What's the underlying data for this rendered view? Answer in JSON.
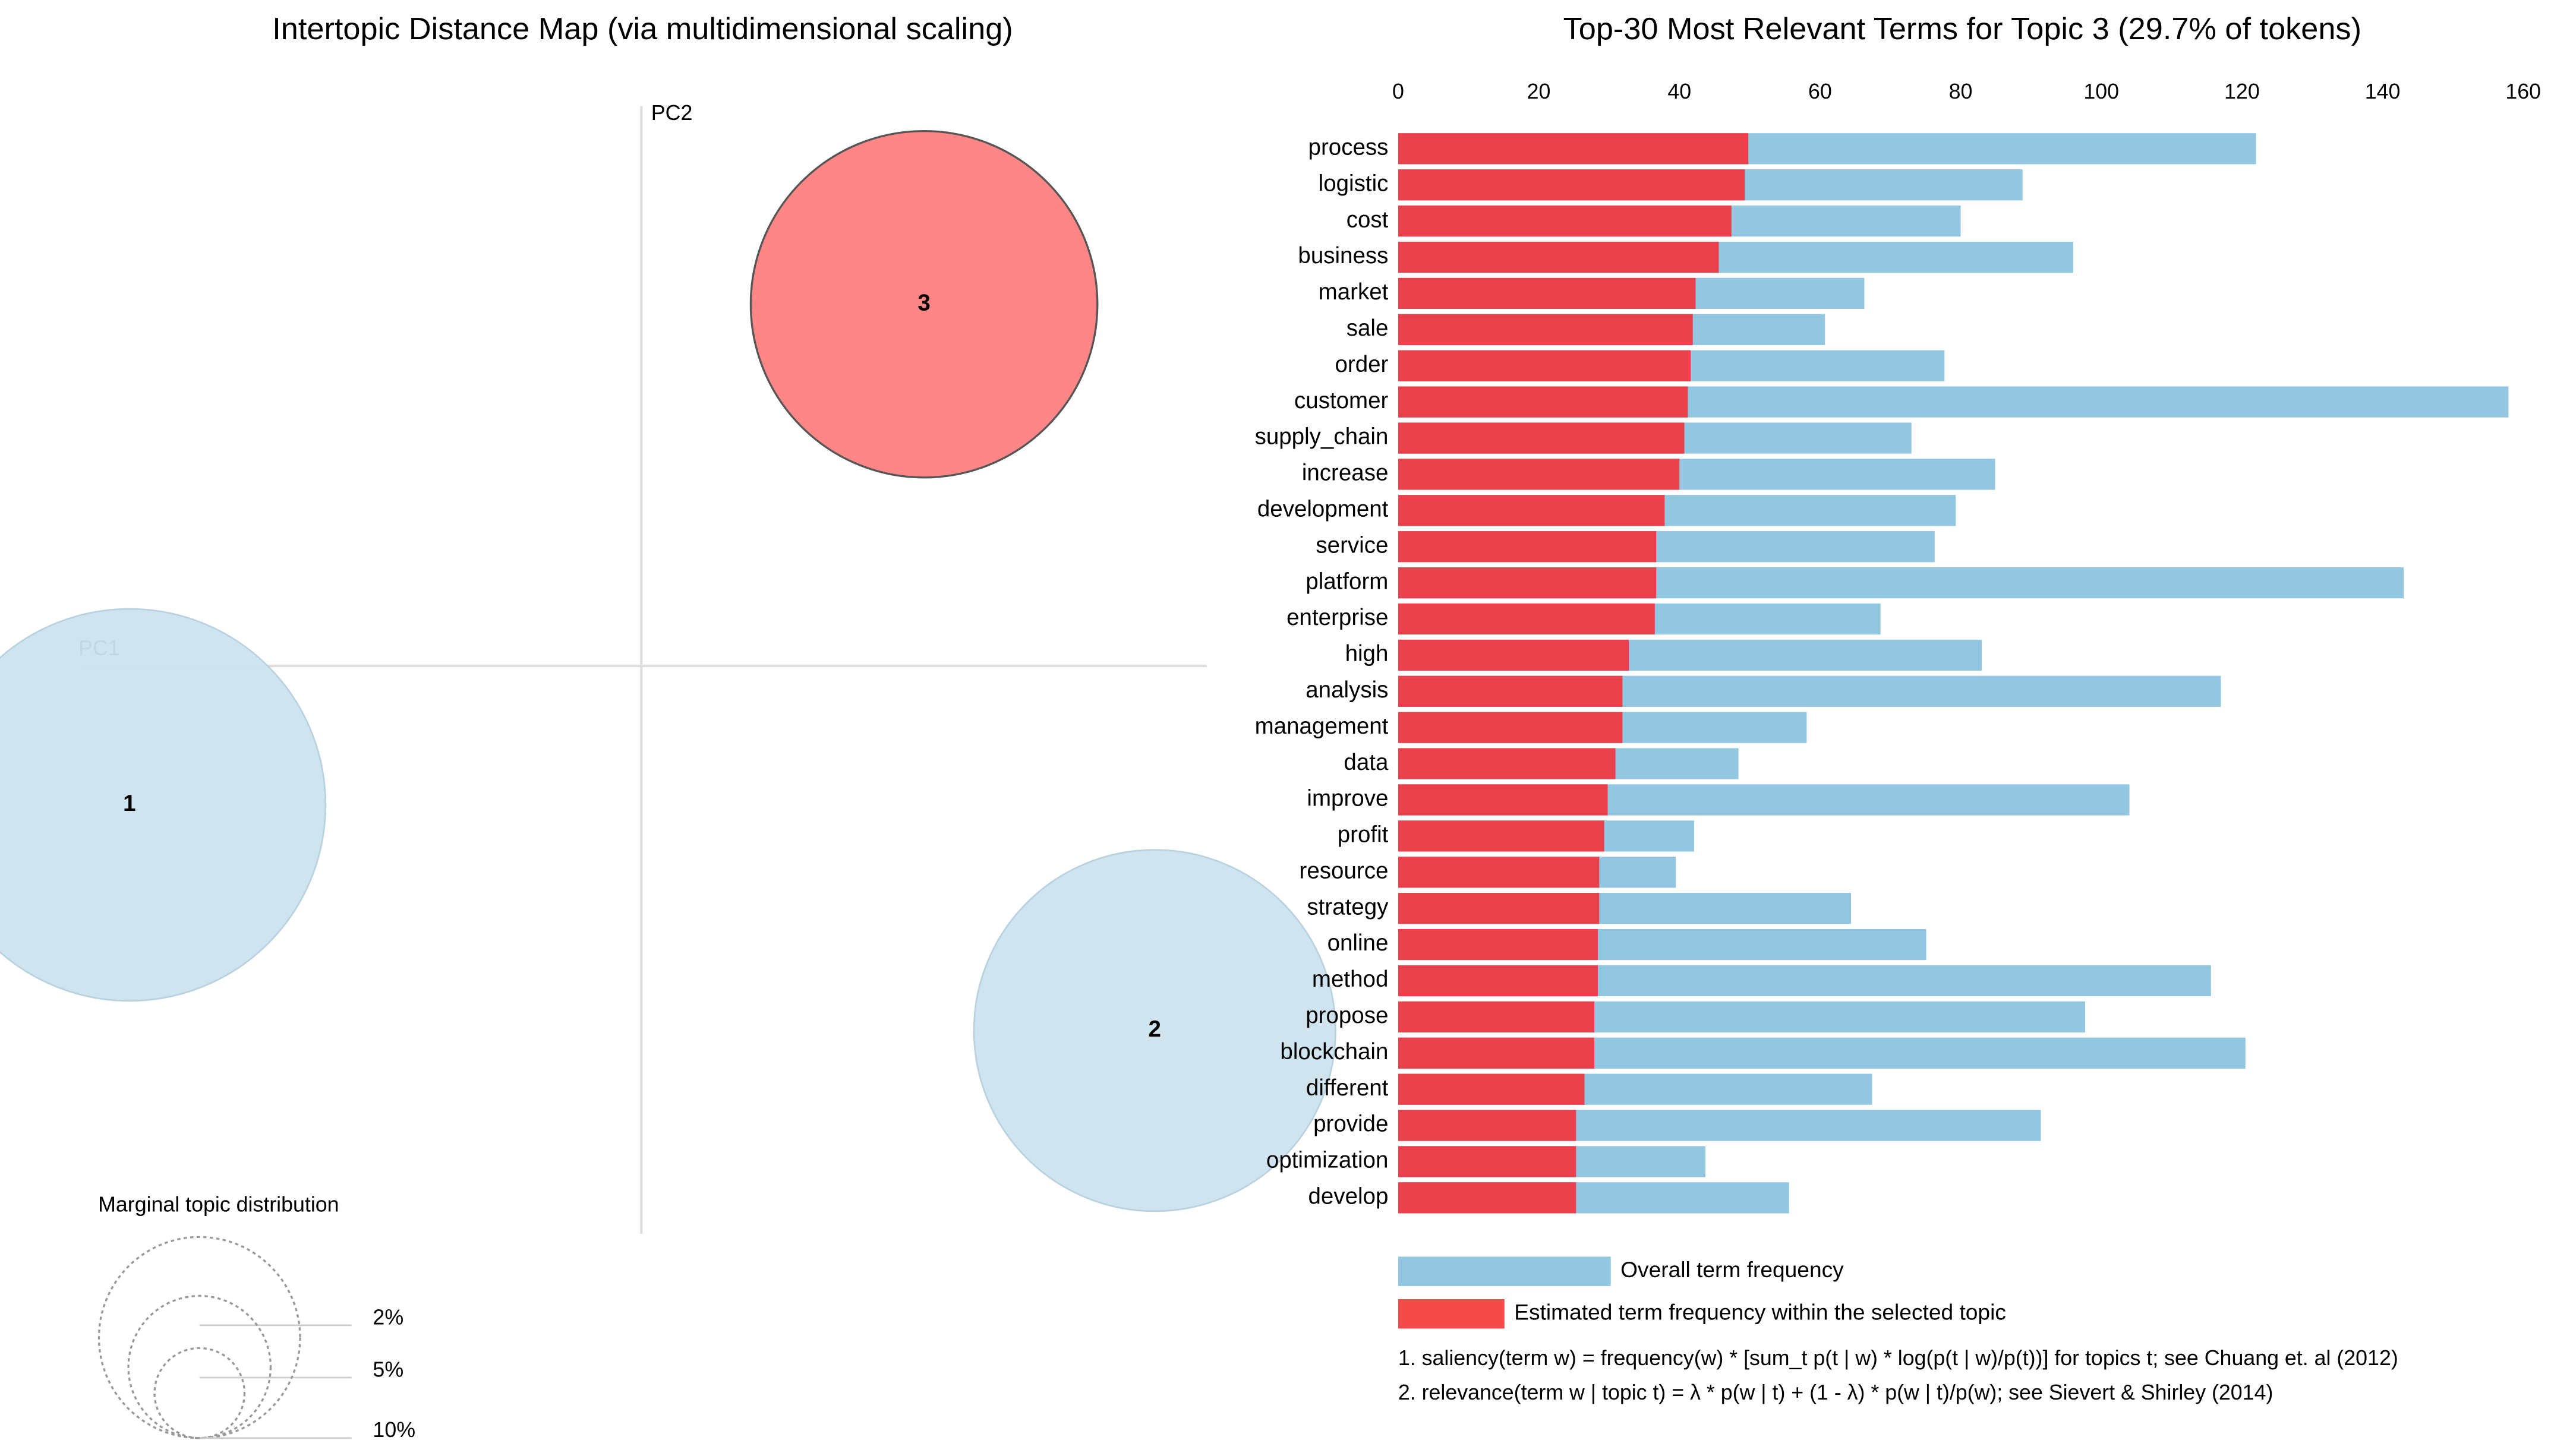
{
  "chart_data": [
    {
      "type": "scatter",
      "title": "Intertopic Distance Map (via multidimensional scaling)",
      "x_label": "PC1",
      "y_label": "PC2",
      "xlim": [
        -0.42,
        0.38
      ],
      "ylim": [
        -0.38,
        0.38
      ],
      "labels": [
        "1",
        "2",
        "3"
      ],
      "x": [
        -0.344,
        0.345,
        0.19
      ],
      "y": [
        -0.093,
        -0.244,
        0.242
      ],
      "sizes": [
        38,
        32.3,
        29.7
      ],
      "colors": [
        "#cde3ef",
        "#cde3ef",
        "#ff8080"
      ],
      "size_legend": {
        "title": "Marginal topic distribution",
        "ticks": [
          {
            "value": 2,
            "label": "2%"
          },
          {
            "value": 5,
            "label": "5%"
          },
          {
            "value": 10,
            "label": "10%"
          }
        ]
      }
    },
    {
      "type": "bar",
      "title": "Top-30 Most Relevant Terms for Topic 3 (29.7% of tokens)",
      "categories": [
        "process",
        "logistic",
        "cost",
        "business",
        "market",
        "sale",
        "order",
        "customer",
        "supply_chain",
        "increase",
        "development",
        "service",
        "platform",
        "enterprise",
        "high",
        "analysis",
        "management",
        "data",
        "improve",
        "profit",
        "resource",
        "strategy",
        "online",
        "method",
        "propose",
        "blockchain",
        "different",
        "provide",
        "optimization",
        "develop"
      ],
      "series": [
        {
          "name": "Overall term frequency",
          "color": "#93c6e1",
          "values": [
            122,
            88.8,
            80,
            96,
            66.3,
            60.7,
            77.7,
            157.9,
            73,
            84.9,
            79.3,
            76.3,
            143,
            68.6,
            83,
            117,
            58.1,
            48.4,
            104,
            42.1,
            39.5,
            64.4,
            75.1,
            115.6,
            97.7,
            120.5,
            67.4,
            91.4,
            43.7,
            55.6
          ]
        },
        {
          "name": "Estimated term frequency within the selected topic",
          "color": "#ea404b",
          "values": [
            49.8,
            49.3,
            47.4,
            45.6,
            42.3,
            41.9,
            41.6,
            41.2,
            40.7,
            40,
            37.9,
            36.7,
            36.7,
            36.5,
            32.8,
            31.9,
            31.9,
            30.9,
            29.8,
            29.3,
            28.6,
            28.6,
            28.4,
            28.4,
            27.9,
            27.9,
            26.5,
            25.3,
            25.3,
            25.3
          ]
        }
      ],
      "xlim": [
        0,
        160
      ],
      "xticks": [
        0,
        20,
        40,
        60,
        80,
        100,
        120,
        140,
        160
      ],
      "notes": [
        "1. saliency(term w) = frequency(w) * [sum_t p(t | w) * log(p(t | w)/p(t))] for topics t; see Chuang et. al (2012)",
        "2. relevance(term w | topic t) = λ * p(w | t) + (1 - λ) * p(w | t)/p(w); see Sievert & Shirley (2014)"
      ]
    }
  ]
}
